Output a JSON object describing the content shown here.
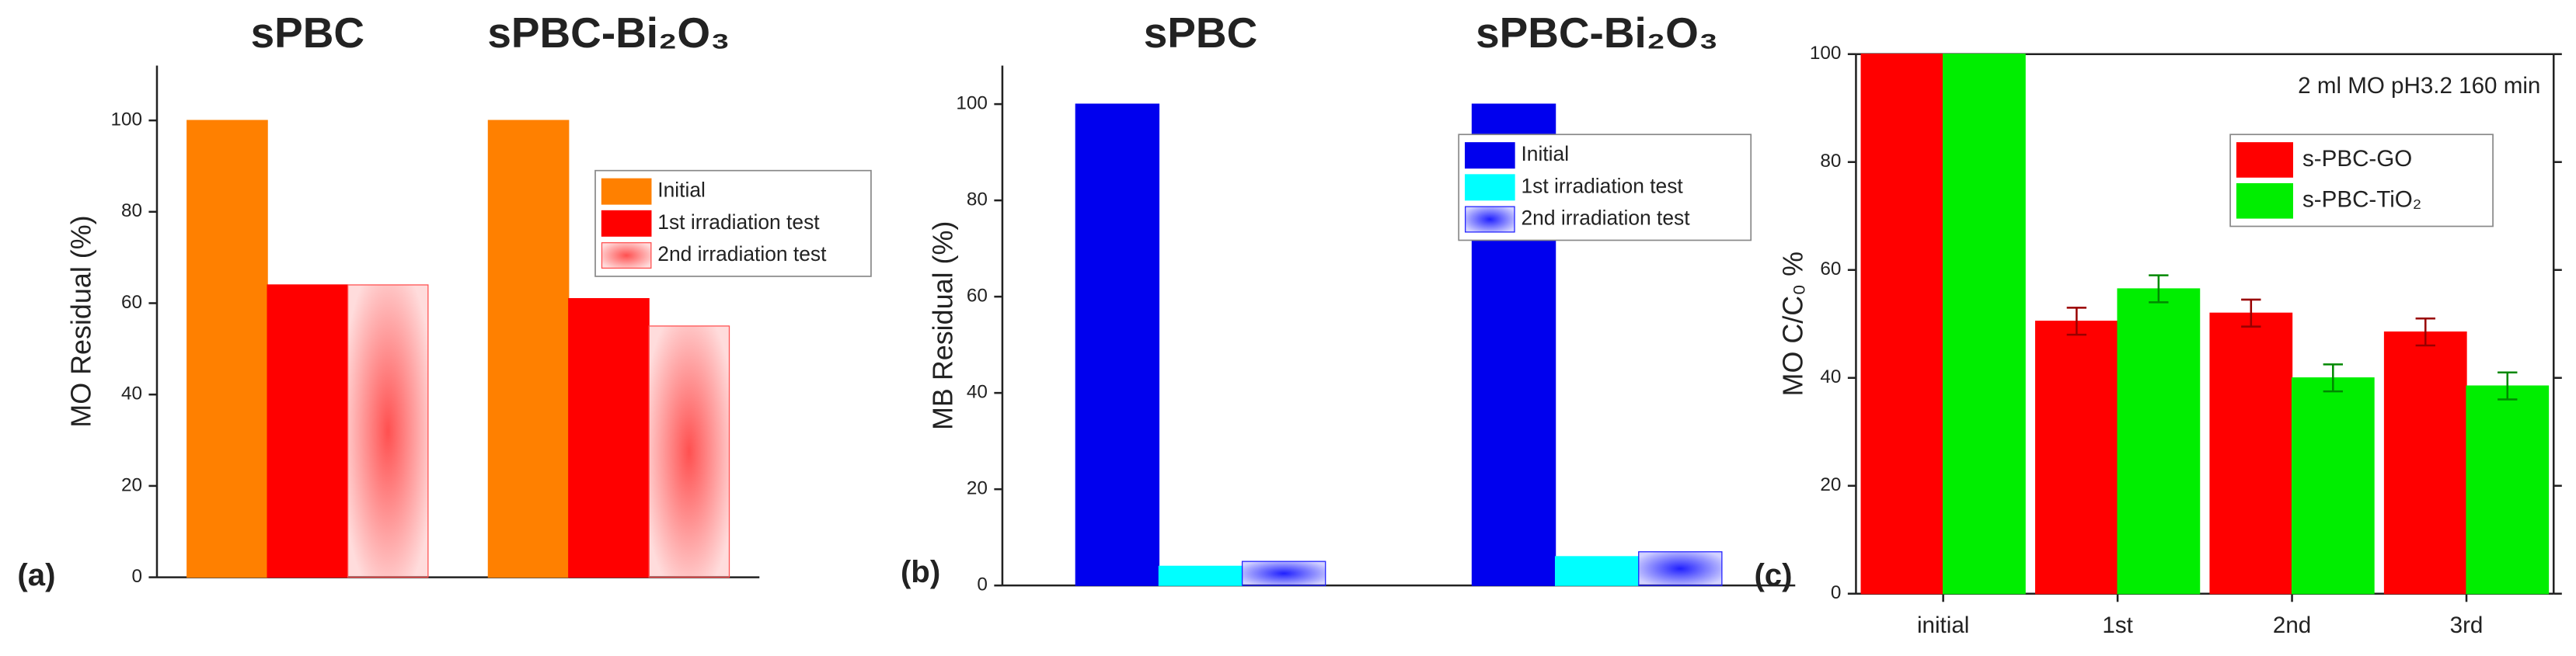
{
  "chart_data": [
    {
      "type": "bar",
      "panel_label": "(a)",
      "y_label": "MO Residual (%)",
      "categories": [
        "sPBC",
        "sPBC-Bi₂O₃"
      ],
      "series": [
        {
          "name": "Initial",
          "color": "#ff8000",
          "values": [
            100,
            100
          ]
        },
        {
          "name": "1st irradiation test",
          "color": "#ff0000",
          "values": [
            64,
            61
          ]
        },
        {
          "name": "2nd irradiation test",
          "color": "#ff5050",
          "fill": "gradient",
          "values": [
            64,
            55
          ]
        }
      ],
      "ylim": [
        0,
        112
      ],
      "yticks": [
        0,
        20,
        40,
        60,
        80,
        100
      ],
      "legend": "upper right"
    },
    {
      "type": "bar",
      "panel_label": "(b)",
      "y_label": "MB Residual (%)",
      "categories": [
        "sPBC",
        "sPBC-Bi₂O₃"
      ],
      "series": [
        {
          "name": "Initial",
          "color": "#0000ee",
          "values": [
            100,
            100
          ]
        },
        {
          "name": "1st irradiation test",
          "color": "#00ffff",
          "values": [
            4,
            6
          ]
        },
        {
          "name": "2nd irradiation test",
          "color": "#2020ff",
          "fill": "gradient",
          "values": [
            5,
            7
          ]
        }
      ],
      "ylim": [
        0,
        108
      ],
      "yticks": [
        0,
        20,
        40,
        60,
        80,
        100
      ],
      "legend": "upper right"
    },
    {
      "type": "bar",
      "panel_label": "(c)",
      "y_label": "MO C/C₀ %",
      "annotation": "2 ml MO pH3.2 160 min",
      "categories": [
        "initial",
        "1st",
        "2nd",
        "3rd"
      ],
      "series": [
        {
          "name": "s-PBC-GO",
          "color": "#ff0000",
          "values": [
            100,
            50.5,
            52,
            48.5
          ],
          "errors": [
            null,
            2.5,
            2.5,
            2.5
          ]
        },
        {
          "name": "s-PBC-TiO₂",
          "color": "#00ee00",
          "values": [
            100,
            56.5,
            40,
            38.5
          ],
          "errors": [
            null,
            2.5,
            2.5,
            2.5
          ]
        }
      ],
      "ylim": [
        0,
        100
      ],
      "yticks": [
        0,
        20,
        40,
        60,
        80,
        100
      ],
      "legend": "upper right"
    }
  ]
}
